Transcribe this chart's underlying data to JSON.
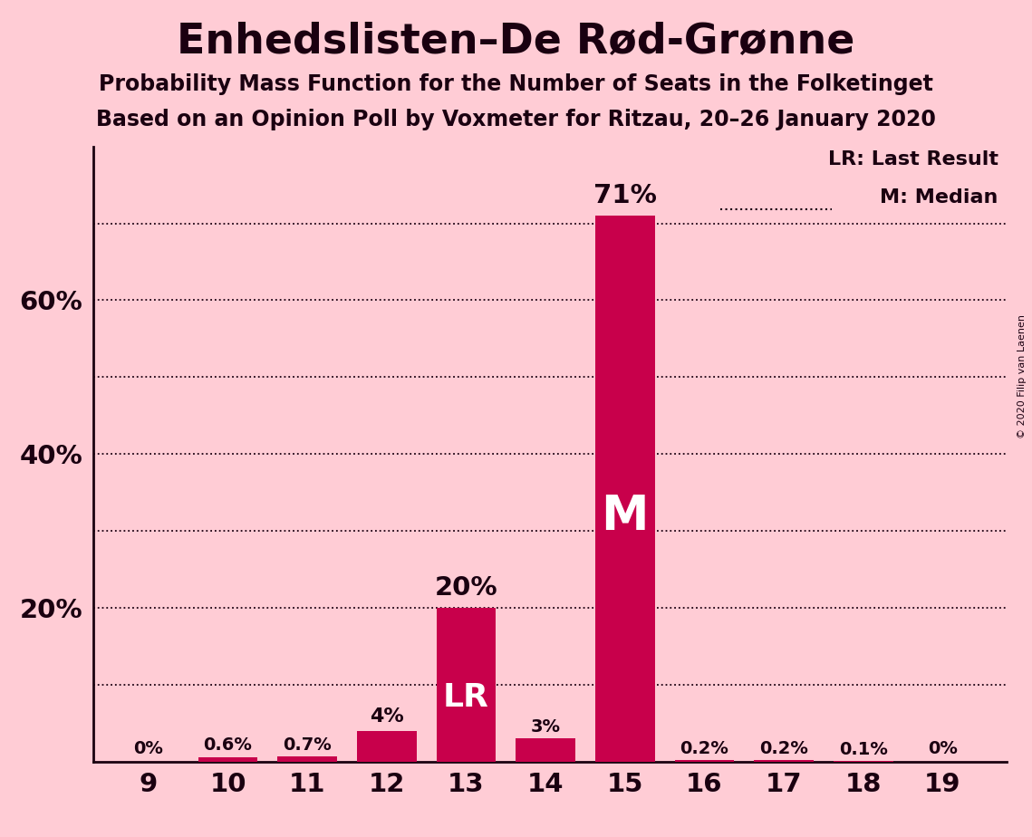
{
  "title": "Enhedslisten–De Rød-Grønne",
  "subtitle1": "Probability Mass Function for the Number of Seats in the Folketinget",
  "subtitle2": "Based on an Opinion Poll by Voxmeter for Ritzau, 20–26 January 2020",
  "copyright": "© 2020 Filip van Laenen",
  "seats": [
    9,
    10,
    11,
    12,
    13,
    14,
    15,
    16,
    17,
    18,
    19
  ],
  "probabilities": [
    0.0,
    0.6,
    0.7,
    4.0,
    20.0,
    3.0,
    71.0,
    0.2,
    0.2,
    0.1,
    0.0
  ],
  "bar_color": "#C8004B",
  "background_color": "#FFCCD5",
  "text_color": "#1A0010",
  "bar_labels": [
    "0%",
    "0.6%",
    "0.7%",
    "4%",
    "20%",
    "3%",
    "71%",
    "0.2%",
    "0.2%",
    "0.1%",
    "0%"
  ],
  "lr_seat": 13,
  "median_seat": 15,
  "ylim": [
    0,
    80
  ],
  "yticks_shown": [
    20,
    40,
    60
  ],
  "dotted_line_y": [
    10,
    20,
    30,
    40,
    50,
    60,
    70
  ],
  "legend_lr": "LR: Last Result",
  "legend_m": "M: Median"
}
